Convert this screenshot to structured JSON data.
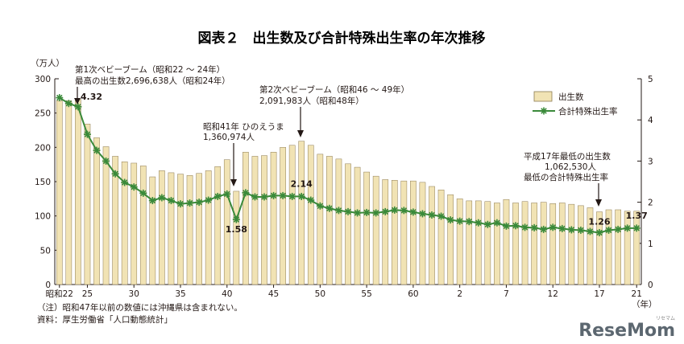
{
  "chart_data": {
    "type": "bar+line",
    "title": "図表２　出生数及び合計特殊出生率の年次推移",
    "y_left_unit": "（万人）",
    "y_right_unit": "",
    "x_unit": "（年）",
    "ylim_left": [
      0,
      300
    ],
    "ylim_right": [
      0,
      5
    ],
    "yticks_left": [
      "0",
      "50",
      "100",
      "150",
      "200",
      "250",
      "300"
    ],
    "yticks_right": [
      "0",
      "1",
      "2",
      "3",
      "4",
      "5"
    ],
    "xticks": [
      {
        "year": 1947,
        "label": "昭和22"
      },
      {
        "year": 1950,
        "label": "25"
      },
      {
        "year": 1955,
        "label": "30"
      },
      {
        "year": 1960,
        "label": "35"
      },
      {
        "year": 1965,
        "label": "40"
      },
      {
        "year": 1970,
        "label": "45"
      },
      {
        "year": 1975,
        "label": "50"
      },
      {
        "year": 1980,
        "label": "55"
      },
      {
        "year": 1985,
        "label": "60"
      },
      {
        "year": 1990,
        "label": "2"
      },
      {
        "year": 1995,
        "label": "7"
      },
      {
        "year": 2000,
        "label": "12"
      },
      {
        "year": 2005,
        "label": "17"
      },
      {
        "year": 2009,
        "label": "21"
      }
    ],
    "series": [
      {
        "name": "出生数",
        "kind": "bar",
        "color": "#f1e3b4",
        "stroke": "#8c7a52",
        "start_year": 1947,
        "values": [
          268,
          268,
          270,
          234,
          214,
          201,
          187,
          179,
          177,
          173,
          157,
          166,
          163,
          161,
          159,
          162,
          166,
          172,
          182,
          136,
          193,
          187,
          188,
          193,
          200,
          203,
          209,
          203,
          190,
          187,
          183,
          176,
          171,
          164,
          158,
          153,
          152,
          151,
          151,
          149,
          143,
          138,
          131,
          125,
          122,
          122,
          121,
          119,
          124,
          119,
          121,
          119,
          120,
          118,
          119,
          117,
          115,
          112,
          106,
          109,
          109,
          107,
          107
        ]
      },
      {
        "name": "合計特殊出生率",
        "kind": "line",
        "color": "#3a8a3a",
        "start_year": 1947,
        "values": [
          4.54,
          4.4,
          4.32,
          3.65,
          3.26,
          3.0,
          2.69,
          2.48,
          2.37,
          2.22,
          2.04,
          2.11,
          2.04,
          1.96,
          1.98,
          2.0,
          2.05,
          2.14,
          2.2,
          1.58,
          2.23,
          2.13,
          2.13,
          2.16,
          2.16,
          2.14,
          2.14,
          2.05,
          1.91,
          1.85,
          1.8,
          1.77,
          1.74,
          1.75,
          1.74,
          1.77,
          1.81,
          1.8,
          1.76,
          1.72,
          1.69,
          1.66,
          1.57,
          1.54,
          1.53,
          1.5,
          1.46,
          1.5,
          1.42,
          1.43,
          1.39,
          1.38,
          1.34,
          1.39,
          1.36,
          1.33,
          1.32,
          1.29,
          1.26,
          1.32,
          1.34,
          1.37,
          1.37
        ]
      }
    ],
    "data_labels": [
      {
        "year": 1949,
        "text": "4.32"
      },
      {
        "year": 1966,
        "text": "1.58"
      },
      {
        "year": 1973,
        "text": "2.14"
      },
      {
        "year": 2005,
        "text": "1.26"
      },
      {
        "year": 2009,
        "text": "1.37"
      }
    ],
    "annotations": [
      {
        "name": "first-baby-boom",
        "lines": [
          "第1次ベビーブーム（昭和22 ～ 24年）",
          "最高の出生数2,696,638人（昭和24年）"
        ]
      },
      {
        "name": "hinoeuma",
        "lines": [
          "昭和41年 ひのえうま",
          "1,360,974人"
        ]
      },
      {
        "name": "second-baby-boom",
        "lines": [
          "第2次ベビーブーム（昭和46 ～ 49年）",
          "2,091,983人（昭和48年）"
        ]
      },
      {
        "name": "heisei17-lowest",
        "lines": [
          "平成17年最低の出生数",
          "1,062,530人",
          "最低の合計特殊出生率"
        ]
      }
    ],
    "legend": {
      "position": "top-right",
      "items": [
        "出生数",
        "合計特殊出生率"
      ]
    }
  },
  "notes": [
    "（注）昭和47年以前の数値には沖縄県は含まれない。",
    "資料：厚生労働省「人口動態統計」"
  ],
  "watermark": {
    "brand": "ReseMom",
    "small": "リセマム"
  }
}
